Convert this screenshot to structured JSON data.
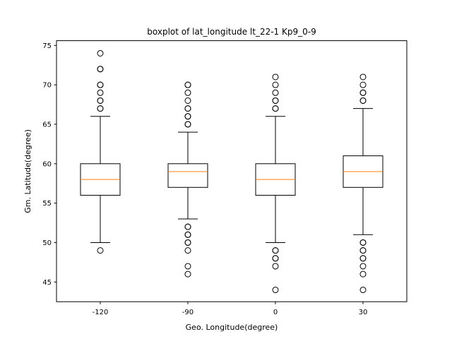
{
  "chart_data": {
    "type": "boxplot",
    "title": "boxplot of lat_longitude lt_22-1 Kp9_0-9",
    "xlabel": "Geo. Longitude(degree)",
    "ylabel": "Gm. Latitude(degree)",
    "ylim": [
      42.5,
      75.6
    ],
    "yticks": [
      45,
      50,
      55,
      60,
      65,
      70,
      75
    ],
    "grid": false,
    "median_color": "#ff7f0e",
    "box_color": "#000000",
    "categories": [
      "-120",
      "-90",
      "0",
      "30"
    ],
    "boxes": [
      {
        "label": "-120",
        "whisker_low": 50,
        "q1": 56,
        "median": 58,
        "q3": 60,
        "whisker_high": 66,
        "outliers": [
          49,
          67,
          67,
          68,
          68,
          69,
          70,
          70,
          72,
          72,
          74
        ]
      },
      {
        "label": "-90",
        "whisker_low": 53,
        "q1": 57,
        "median": 59,
        "q3": 60,
        "whisker_high": 64,
        "outliers": [
          46,
          47,
          49,
          50,
          50,
          51,
          51,
          52,
          52,
          65,
          65,
          66,
          66,
          67,
          67,
          68,
          69,
          70,
          70
        ]
      },
      {
        "label": "0",
        "whisker_low": 50,
        "q1": 56,
        "median": 58,
        "q3": 60,
        "whisker_high": 66,
        "outliers": [
          44,
          47,
          48,
          48,
          49,
          49,
          67,
          67,
          68,
          68,
          69,
          70,
          71
        ]
      },
      {
        "label": "30",
        "whisker_low": 51,
        "q1": 57,
        "median": 59,
        "q3": 61,
        "whisker_high": 67,
        "outliers": [
          44,
          46,
          47,
          48,
          48,
          49,
          49,
          50,
          50,
          68,
          68,
          69,
          69,
          70,
          71
        ]
      }
    ]
  }
}
